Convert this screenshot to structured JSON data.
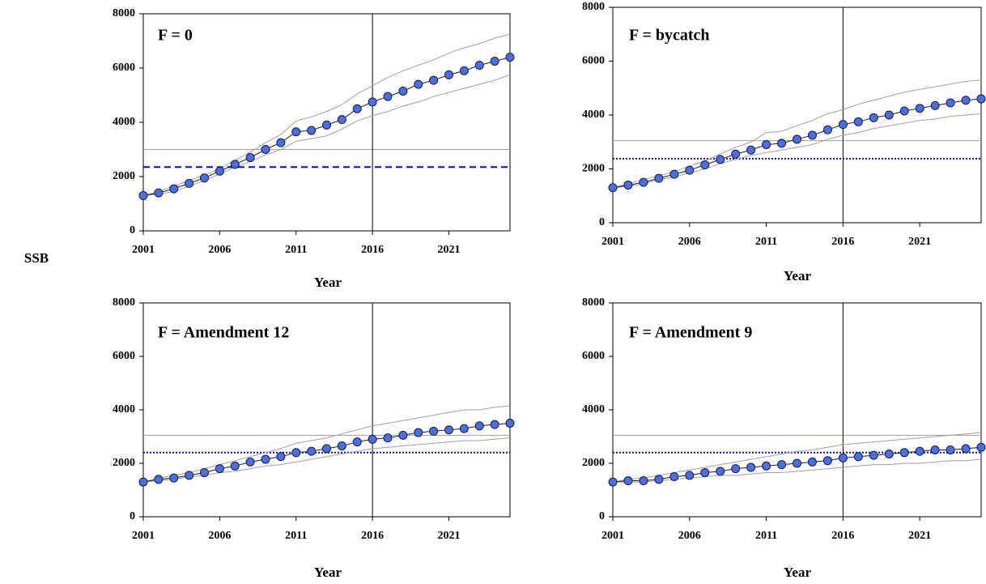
{
  "chart_data": [
    {
      "type": "line",
      "title": "F = 0",
      "xlabel": "Year",
      "ylabel": "SSB",
      "x": [
        2001,
        2002,
        2003,
        2004,
        2005,
        2006,
        2007,
        2008,
        2009,
        2010,
        2011,
        2012,
        2013,
        2014,
        2015,
        2016,
        2017,
        2018,
        2019,
        2020,
        2021,
        2022,
        2023,
        2024,
        2025
      ],
      "xlim": [
        2001,
        2025
      ],
      "xticks": [
        2001,
        2006,
        2011,
        2016,
        2021
      ],
      "ylim": [
        0,
        8000
      ],
      "yticks": [
        0,
        2000,
        4000,
        6000,
        8000
      ],
      "series": [
        {
          "color": "#4a6fe3",
          "values": [
            1300,
            1400,
            1550,
            1750,
            1950,
            2200,
            2450,
            2700,
            3000,
            3250,
            3650,
            3700,
            3900,
            4100,
            4500,
            4750,
            4950,
            5150,
            5400,
            5550,
            5750,
            5900,
            6100,
            6250,
            6400
          ]
        },
        {
          "color": "#a0a0a0",
          "values": [
            1300,
            1450,
            1650,
            1850,
            2050,
            2300,
            2600,
            2900,
            3250,
            3550,
            4050,
            4200,
            4400,
            4650,
            5050,
            5350,
            5650,
            5900,
            6100,
            6300,
            6550,
            6750,
            6900,
            7100,
            7250
          ]
        },
        {
          "color": "#a0a0a0",
          "values": [
            1300,
            1350,
            1450,
            1650,
            1850,
            2100,
            2350,
            2550,
            2800,
            3000,
            3300,
            3400,
            3500,
            3750,
            4050,
            4250,
            4400,
            4600,
            4750,
            4950,
            5100,
            5250,
            5400,
            5550,
            5750
          ]
        }
      ],
      "hlines": [
        {
          "value": 3000,
          "color": "#a0a0a0",
          "style": "solid"
        },
        {
          "value": 2350,
          "color": "#0000ff",
          "style": "dashed"
        }
      ],
      "vline": 2016
    },
    {
      "type": "line",
      "title": "F = bycatch",
      "xlabel": "Year",
      "x": [
        2001,
        2002,
        2003,
        2004,
        2005,
        2006,
        2007,
        2008,
        2009,
        2010,
        2011,
        2012,
        2013,
        2014,
        2015,
        2016,
        2017,
        2018,
        2019,
        2020,
        2021,
        2022,
        2023,
        2024,
        2025
      ],
      "xlim": [
        2001,
        2025
      ],
      "xticks": [
        2001,
        2006,
        2011,
        2016,
        2021
      ],
      "ylim": [
        0,
        8000
      ],
      "yticks": [
        0,
        2000,
        4000,
        6000,
        8000
      ],
      "series": [
        {
          "color": "#4a6fe3",
          "values": [
            1300,
            1400,
            1500,
            1650,
            1800,
            1950,
            2150,
            2350,
            2550,
            2700,
            2900,
            2950,
            3100,
            3250,
            3450,
            3650,
            3750,
            3900,
            4000,
            4150,
            4250,
            4350,
            4450,
            4550,
            4600
          ]
        },
        {
          "color": "#a0a0a0",
          "values": [
            1300,
            1450,
            1600,
            1750,
            1900,
            2100,
            2300,
            2550,
            2800,
            3000,
            3350,
            3400,
            3600,
            3800,
            4050,
            4200,
            4400,
            4550,
            4700,
            4850,
            4950,
            5050,
            5150,
            5250,
            5300
          ]
        },
        {
          "color": "#a0a0a0",
          "values": [
            1300,
            1350,
            1450,
            1600,
            1700,
            1850,
            2000,
            2200,
            2350,
            2500,
            2600,
            2700,
            2800,
            2900,
            3100,
            3250,
            3350,
            3500,
            3600,
            3700,
            3800,
            3850,
            3950,
            4000,
            4050
          ]
        }
      ],
      "hlines": [
        {
          "value": 3050,
          "color": "#a0a0a0",
          "style": "solid"
        },
        {
          "value": 2380,
          "color": "#0000ff",
          "style": "dotted"
        }
      ],
      "vline": 2016
    },
    {
      "type": "line",
      "title": "F = Amendment 12",
      "xlabel": "Year",
      "x": [
        2001,
        2002,
        2003,
        2004,
        2005,
        2006,
        2007,
        2008,
        2009,
        2010,
        2011,
        2012,
        2013,
        2014,
        2015,
        2016,
        2017,
        2018,
        2019,
        2020,
        2021,
        2022,
        2023,
        2024,
        2025
      ],
      "xlim": [
        2001,
        2025
      ],
      "xticks": [
        2001,
        2006,
        2011,
        2016,
        2021
      ],
      "ylim": [
        0,
        8000
      ],
      "yticks": [
        0,
        2000,
        4000,
        6000,
        8000
      ],
      "series": [
        {
          "color": "#4a6fe3",
          "values": [
            1300,
            1400,
            1450,
            1550,
            1650,
            1800,
            1900,
            2050,
            2150,
            2250,
            2400,
            2450,
            2550,
            2650,
            2800,
            2900,
            2950,
            3050,
            3150,
            3200,
            3250,
            3300,
            3400,
            3450,
            3500
          ]
        },
        {
          "color": "#a0a0a0",
          "values": [
            1300,
            1450,
            1550,
            1650,
            1800,
            1950,
            2100,
            2250,
            2400,
            2550,
            2750,
            2850,
            2950,
            3100,
            3250,
            3400,
            3500,
            3600,
            3700,
            3800,
            3900,
            4000,
            4000,
            4100,
            4150
          ]
        },
        {
          "color": "#a0a0a0",
          "values": [
            1300,
            1350,
            1400,
            1500,
            1550,
            1650,
            1700,
            1800,
            1900,
            1950,
            2050,
            2150,
            2250,
            2350,
            2450,
            2550,
            2600,
            2650,
            2700,
            2750,
            2800,
            2850,
            2850,
            2900,
            2950
          ]
        }
      ],
      "hlines": [
        {
          "value": 3050,
          "color": "#a0a0a0",
          "style": "solid"
        },
        {
          "value": 2400,
          "color": "#0000ff",
          "style": "dotted"
        }
      ],
      "vline": 2016
    },
    {
      "type": "line",
      "title": "F = Amendment 9",
      "xlabel": "Year",
      "x": [
        2001,
        2002,
        2003,
        2004,
        2005,
        2006,
        2007,
        2008,
        2009,
        2010,
        2011,
        2012,
        2013,
        2014,
        2015,
        2016,
        2017,
        2018,
        2019,
        2020,
        2021,
        2022,
        2023,
        2024,
        2025
      ],
      "xlim": [
        2001,
        2025
      ],
      "xticks": [
        2001,
        2006,
        2011,
        2016,
        2021
      ],
      "ylim": [
        0,
        8000
      ],
      "yticks": [
        0,
        2000,
        4000,
        6000,
        8000
      ],
      "series": [
        {
          "color": "#4a6fe3",
          "values": [
            1300,
            1350,
            1350,
            1400,
            1500,
            1550,
            1650,
            1700,
            1800,
            1850,
            1900,
            1950,
            2000,
            2050,
            2100,
            2200,
            2250,
            2300,
            2350,
            2400,
            2450,
            2500,
            2500,
            2550,
            2600
          ]
        },
        {
          "color": "#a0a0a0",
          "values": [
            1300,
            1400,
            1450,
            1550,
            1650,
            1750,
            1850,
            1950,
            2050,
            2150,
            2250,
            2350,
            2450,
            2500,
            2600,
            2700,
            2750,
            2800,
            2850,
            2900,
            2950,
            3000,
            3050,
            3100,
            3150
          ]
        },
        {
          "color": "#a0a0a0",
          "values": [
            1300,
            1300,
            1300,
            1350,
            1400,
            1450,
            1500,
            1550,
            1550,
            1600,
            1650,
            1650,
            1700,
            1750,
            1800,
            1850,
            1900,
            1950,
            1950,
            2000,
            2000,
            2050,
            2100,
            2100,
            2150
          ]
        }
      ],
      "hlines": [
        {
          "value": 3050,
          "color": "#a0a0a0",
          "style": "solid"
        },
        {
          "value": 2400,
          "color": "#0000ff",
          "style": "dotted"
        }
      ],
      "vline": 2016
    }
  ]
}
